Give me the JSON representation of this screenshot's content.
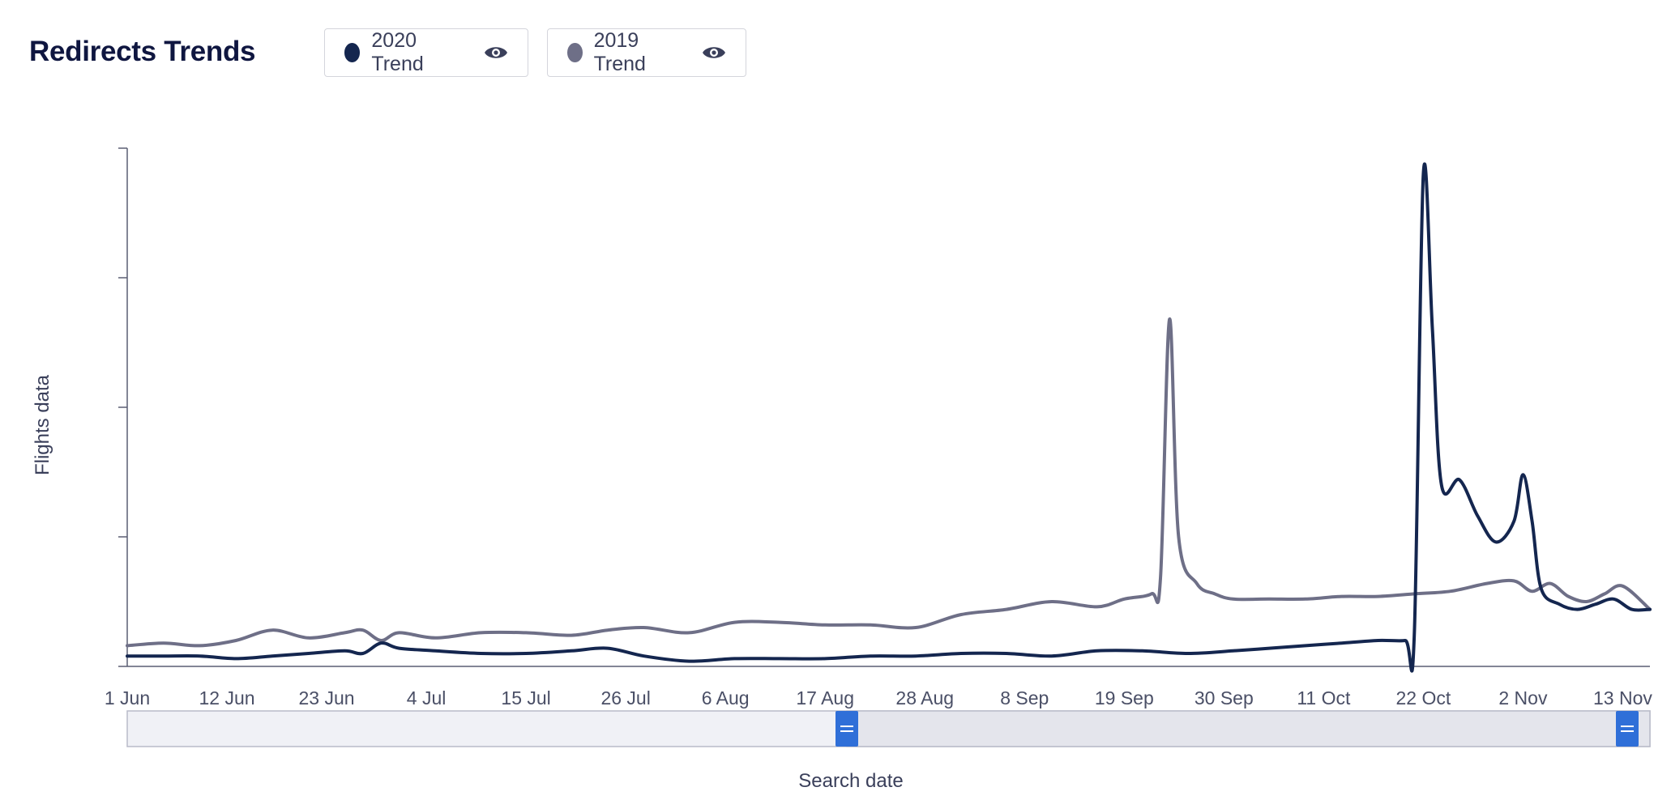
{
  "header": {
    "title": "Redirects Trends"
  },
  "legend": [
    {
      "label": "2020 Trend",
      "color": "#14264f",
      "icon": "eye-icon"
    },
    {
      "label": "2019 Trend",
      "color": "#6e6f87",
      "icon": "eye-icon"
    }
  ],
  "chart_data": {
    "type": "line",
    "title": "Redirects Trends",
    "xlabel": "Search date",
    "ylabel": "Flights data",
    "x_tick_labels": [
      "1 Jun",
      "12 Jun",
      "23 Jun",
      "4 Jul",
      "15 Jul",
      "26 Jul",
      "6 Aug",
      "17 Aug",
      "28 Aug",
      "8 Sep",
      "19 Sep",
      "30 Sep",
      "11 Oct",
      "22 Oct",
      "2 Nov",
      "13 Nov"
    ],
    "x_start": "2020-06-01",
    "x_end": "2020-11-16",
    "ylim": [
      0,
      100
    ],
    "y_tick_labels_shown": false,
    "grid": false,
    "legend_position": "top",
    "series": [
      {
        "name": "2020 Trend",
        "color": "#14264f",
        "points": [
          [
            "2020-06-01",
            2
          ],
          [
            "2020-06-05",
            2
          ],
          [
            "2020-06-09",
            2
          ],
          [
            "2020-06-13",
            1.5
          ],
          [
            "2020-06-17",
            2
          ],
          [
            "2020-06-21",
            2.5
          ],
          [
            "2020-06-25",
            3
          ],
          [
            "2020-06-27",
            2.5
          ],
          [
            "2020-06-29",
            4.5
          ],
          [
            "2020-07-01",
            3.5
          ],
          [
            "2020-07-05",
            3
          ],
          [
            "2020-07-10",
            2.5
          ],
          [
            "2020-07-15",
            2.5
          ],
          [
            "2020-07-20",
            3
          ],
          [
            "2020-07-24",
            3.5
          ],
          [
            "2020-07-28",
            2
          ],
          [
            "2020-08-02",
            1
          ],
          [
            "2020-08-07",
            1.5
          ],
          [
            "2020-08-12",
            1.5
          ],
          [
            "2020-08-17",
            1.5
          ],
          [
            "2020-08-22",
            2
          ],
          [
            "2020-08-27",
            2
          ],
          [
            "2020-09-01",
            2.5
          ],
          [
            "2020-09-06",
            2.5
          ],
          [
            "2020-09-11",
            2
          ],
          [
            "2020-09-16",
            3
          ],
          [
            "2020-09-21",
            3
          ],
          [
            "2020-09-26",
            2.5
          ],
          [
            "2020-10-01",
            3
          ],
          [
            "2020-10-05",
            3.5
          ],
          [
            "2020-10-09",
            4
          ],
          [
            "2020-10-13",
            4.5
          ],
          [
            "2020-10-17",
            5
          ],
          [
            "2020-10-20",
            5
          ],
          [
            "2020-10-21",
            6
          ],
          [
            "2020-10-22",
            95
          ],
          [
            "2020-10-23",
            65
          ],
          [
            "2020-10-24",
            35
          ],
          [
            "2020-10-26",
            36
          ],
          [
            "2020-10-28",
            29
          ],
          [
            "2020-10-30",
            24
          ],
          [
            "2020-11-01",
            28
          ],
          [
            "2020-11-02",
            37
          ],
          [
            "2020-11-03",
            28
          ],
          [
            "2020-11-04",
            15
          ],
          [
            "2020-11-06",
            12
          ],
          [
            "2020-11-08",
            11
          ],
          [
            "2020-11-10",
            12
          ],
          [
            "2020-11-12",
            13
          ],
          [
            "2020-11-14",
            11
          ],
          [
            "2020-11-16",
            11
          ]
        ]
      },
      {
        "name": "2019 Trend",
        "color": "#6e6f87",
        "points": [
          [
            "2020-06-01",
            4
          ],
          [
            "2020-06-05",
            4.5
          ],
          [
            "2020-06-09",
            4
          ],
          [
            "2020-06-13",
            5
          ],
          [
            "2020-06-17",
            7
          ],
          [
            "2020-06-21",
            5.5
          ],
          [
            "2020-06-25",
            6.5
          ],
          [
            "2020-06-27",
            7
          ],
          [
            "2020-06-29",
            5
          ],
          [
            "2020-07-01",
            6.5
          ],
          [
            "2020-07-05",
            5.5
          ],
          [
            "2020-07-10",
            6.5
          ],
          [
            "2020-07-15",
            6.5
          ],
          [
            "2020-07-20",
            6
          ],
          [
            "2020-07-24",
            7
          ],
          [
            "2020-07-28",
            7.5
          ],
          [
            "2020-08-02",
            6.5
          ],
          [
            "2020-08-07",
            8.5
          ],
          [
            "2020-08-12",
            8.5
          ],
          [
            "2020-08-17",
            8
          ],
          [
            "2020-08-22",
            8
          ],
          [
            "2020-08-27",
            7.5
          ],
          [
            "2020-09-01",
            10
          ],
          [
            "2020-09-06",
            11
          ],
          [
            "2020-09-11",
            12.5
          ],
          [
            "2020-09-16",
            11.5
          ],
          [
            "2020-09-19",
            13
          ],
          [
            "2020-09-22",
            14
          ],
          [
            "2020-09-23",
            17
          ],
          [
            "2020-09-24",
            67
          ],
          [
            "2020-09-25",
            25
          ],
          [
            "2020-09-27",
            16
          ],
          [
            "2020-09-29",
            14
          ],
          [
            "2020-10-01",
            13
          ],
          [
            "2020-10-05",
            13
          ],
          [
            "2020-10-09",
            13
          ],
          [
            "2020-10-13",
            13.5
          ],
          [
            "2020-10-17",
            13.5
          ],
          [
            "2020-10-21",
            14
          ],
          [
            "2020-10-25",
            14.5
          ],
          [
            "2020-10-29",
            16
          ],
          [
            "2020-11-01",
            16.5
          ],
          [
            "2020-11-03",
            14.5
          ],
          [
            "2020-11-05",
            16
          ],
          [
            "2020-11-07",
            13.5
          ],
          [
            "2020-11-09",
            12.5
          ],
          [
            "2020-11-11",
            14
          ],
          [
            "2020-11-13",
            15.5
          ],
          [
            "2020-11-16",
            11
          ]
        ]
      }
    ],
    "range_navigator": {
      "handles": 2
    }
  }
}
